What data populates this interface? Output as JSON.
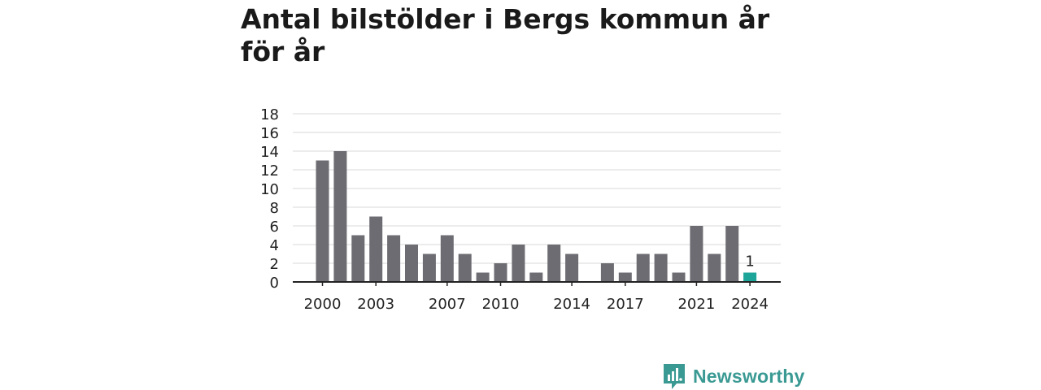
{
  "title": "Antal bilstölder i Bergs kommun år för år",
  "brand": {
    "name": "Newsworthy",
    "color": "#3a9a93"
  },
  "colors": {
    "bar": "#6d6c72",
    "highlight": "#1ea59a",
    "grid": "#d9d9d9",
    "axis": "#222222"
  },
  "chart_data": {
    "type": "bar",
    "title": "Antal bilstölder i Bergs kommun år för år",
    "xlabel": "",
    "ylabel": "",
    "categories": [
      "2000",
      "2001",
      "2002",
      "2003",
      "2004",
      "2005",
      "2006",
      "2007",
      "2008",
      "2009",
      "2010",
      "2011",
      "2012",
      "2013",
      "2014",
      "2015",
      "2016",
      "2017",
      "2018",
      "2019",
      "2020",
      "2021",
      "2022",
      "2023",
      "2024"
    ],
    "values": [
      13,
      14,
      5,
      7,
      5,
      4,
      3,
      5,
      3,
      1,
      2,
      4,
      1,
      4,
      3,
      0,
      2,
      1,
      3,
      3,
      1,
      6,
      3,
      6,
      1
    ],
    "highlight_index": 24,
    "data_labels": [
      {
        "category": "2024",
        "text": "1"
      }
    ],
    "ylim": [
      0,
      18
    ],
    "yticks": [
      "0",
      "2",
      "4",
      "6",
      "8",
      "10",
      "12",
      "14",
      "16",
      "18"
    ],
    "xtick_labels": [
      "2000",
      "2003",
      "2007",
      "2010",
      "2014",
      "2017",
      "2021",
      "2024"
    ],
    "grid": true,
    "legend": "none"
  }
}
